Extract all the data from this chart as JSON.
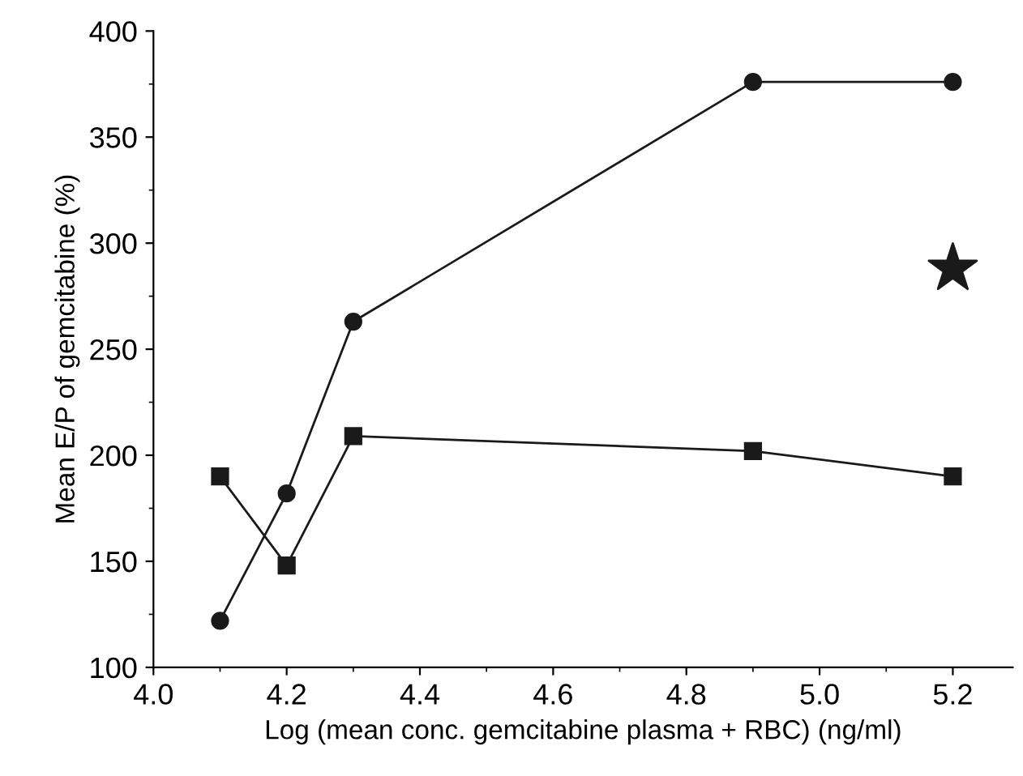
{
  "chart_data": {
    "type": "line",
    "xlabel": "Log (mean conc. gemcitabine plasma + RBC) (ng/ml)",
    "ylabel": "Mean E/P of gemcitabine (%)",
    "xlim": [
      4.0,
      5.29
    ],
    "xticks": [
      {
        "value": 4.0,
        "label": "4.0"
      },
      4.2,
      4.4,
      4.6,
      4.8,
      {
        "value": 5.0,
        "label": "5.0"
      },
      5.2
    ],
    "ylim": [
      100,
      400
    ],
    "yticks": [
      100,
      150,
      200,
      250,
      300,
      350,
      400
    ],
    "grid": false,
    "legend": false,
    "line_style": "solid",
    "series": [
      {
        "color": "#1a1a1a",
        "marker": "circle",
        "x": [
          4.1,
          4.2,
          4.3,
          4.9,
          5.2
        ],
        "values": [
          122,
          182,
          263,
          376,
          376
        ]
      },
      {
        "color": "#1a1a1a",
        "marker": "square",
        "x": [
          4.1,
          4.2,
          4.3,
          4.9,
          5.2
        ],
        "values": [
          190,
          148,
          209,
          202,
          190
        ]
      },
      {
        "type": "scatter",
        "color": "#1a1a1a",
        "marker": "star",
        "x": [
          5.2
        ],
        "values": [
          288
        ]
      }
    ]
  }
}
